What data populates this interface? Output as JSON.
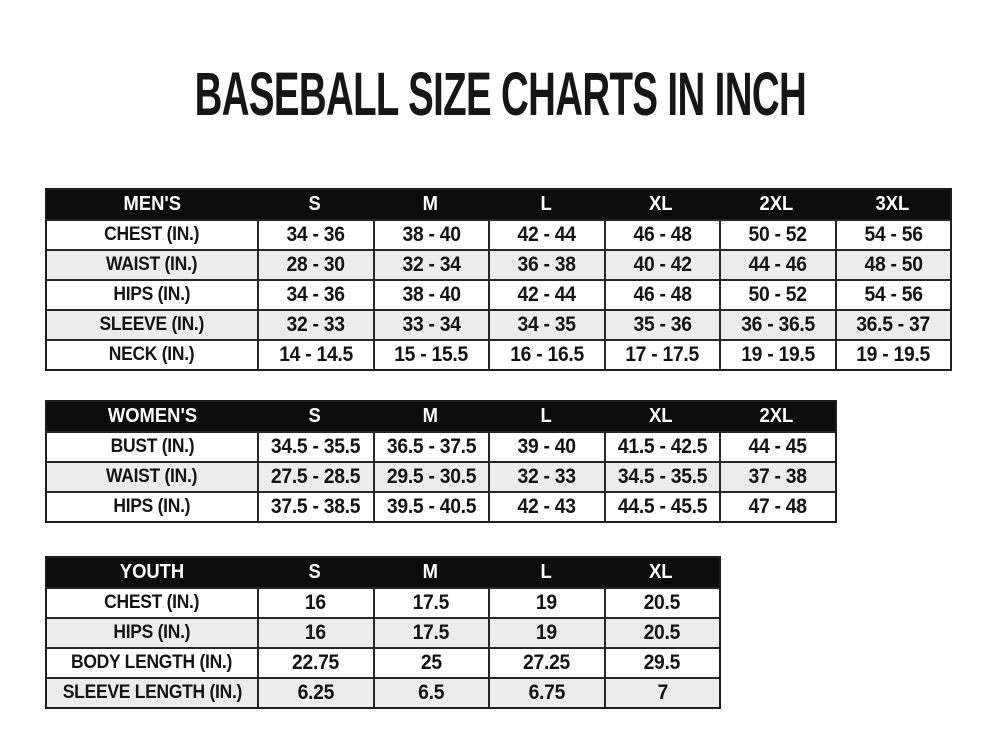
{
  "title": "BASEBALL SIZE CHARTS IN INCH",
  "colors": {
    "page_bg": "#ffffff",
    "header_bg": "#0c0c0c",
    "header_text": "#ffffff",
    "row_bg": "#ffffff",
    "row_alt_bg": "#ececec",
    "border": "#262626",
    "text": "#141414"
  },
  "chart_data": [
    {
      "type": "table",
      "name": "mens",
      "header": [
        "MEN'S",
        "S",
        "M",
        "L",
        "XL",
        "2XL",
        "3XL"
      ],
      "rows": [
        {
          "label": "CHEST (IN.)",
          "values": [
            "34 - 36",
            "38 - 40",
            "42 - 44",
            "46 - 48",
            "50 - 52",
            "54 - 56"
          ]
        },
        {
          "label": "WAIST (IN.)",
          "values": [
            "28 - 30",
            "32 - 34",
            "36 - 38",
            "40 - 42",
            "44 - 46",
            "48 - 50"
          ]
        },
        {
          "label": "HIPS (IN.)",
          "values": [
            "34 - 36",
            "38 - 40",
            "42 - 44",
            "46 - 48",
            "50 - 52",
            "54 - 56"
          ]
        },
        {
          "label": "SLEEVE (IN.)",
          "values": [
            "32 - 33",
            "33 - 34",
            "34 - 35",
            "35 - 36",
            "36 - 36.5",
            "36.5 - 37"
          ]
        },
        {
          "label": "NECK (IN.)",
          "values": [
            "14 - 14.5",
            "15 - 15.5",
            "16 - 16.5",
            "17 - 17.5",
            "19 - 19.5",
            "19 - 19.5"
          ]
        }
      ]
    },
    {
      "type": "table",
      "name": "womens",
      "header": [
        "WOMEN'S",
        "S",
        "M",
        "L",
        "XL",
        "2XL"
      ],
      "rows": [
        {
          "label": "BUST (IN.)",
          "values": [
            "34.5 - 35.5",
            "36.5 - 37.5",
            "39 - 40",
            "41.5 - 42.5",
            "44 - 45"
          ]
        },
        {
          "label": "WAIST (IN.)",
          "values": [
            "27.5 - 28.5",
            "29.5 - 30.5",
            "32 - 33",
            "34.5 - 35.5",
            "37 - 38"
          ]
        },
        {
          "label": "HIPS (IN.)",
          "values": [
            "37.5 - 38.5",
            "39.5 - 40.5",
            "42 - 43",
            "44.5 - 45.5",
            "47 - 48"
          ]
        }
      ]
    },
    {
      "type": "table",
      "name": "youth",
      "header": [
        "YOUTH",
        "S",
        "M",
        "L",
        "XL"
      ],
      "rows": [
        {
          "label": "CHEST (IN.)",
          "values": [
            "16",
            "17.5",
            "19",
            "20.5"
          ]
        },
        {
          "label": "HIPS (IN.)",
          "values": [
            "16",
            "17.5",
            "19",
            "20.5"
          ]
        },
        {
          "label": "BODY LENGTH (IN.)",
          "values": [
            "22.75",
            "25",
            "27.25",
            "29.5"
          ]
        },
        {
          "label": "SLEEVE LENGTH (IN.)",
          "values": [
            "6.25",
            "6.5",
            "6.75",
            "7"
          ]
        }
      ]
    }
  ]
}
